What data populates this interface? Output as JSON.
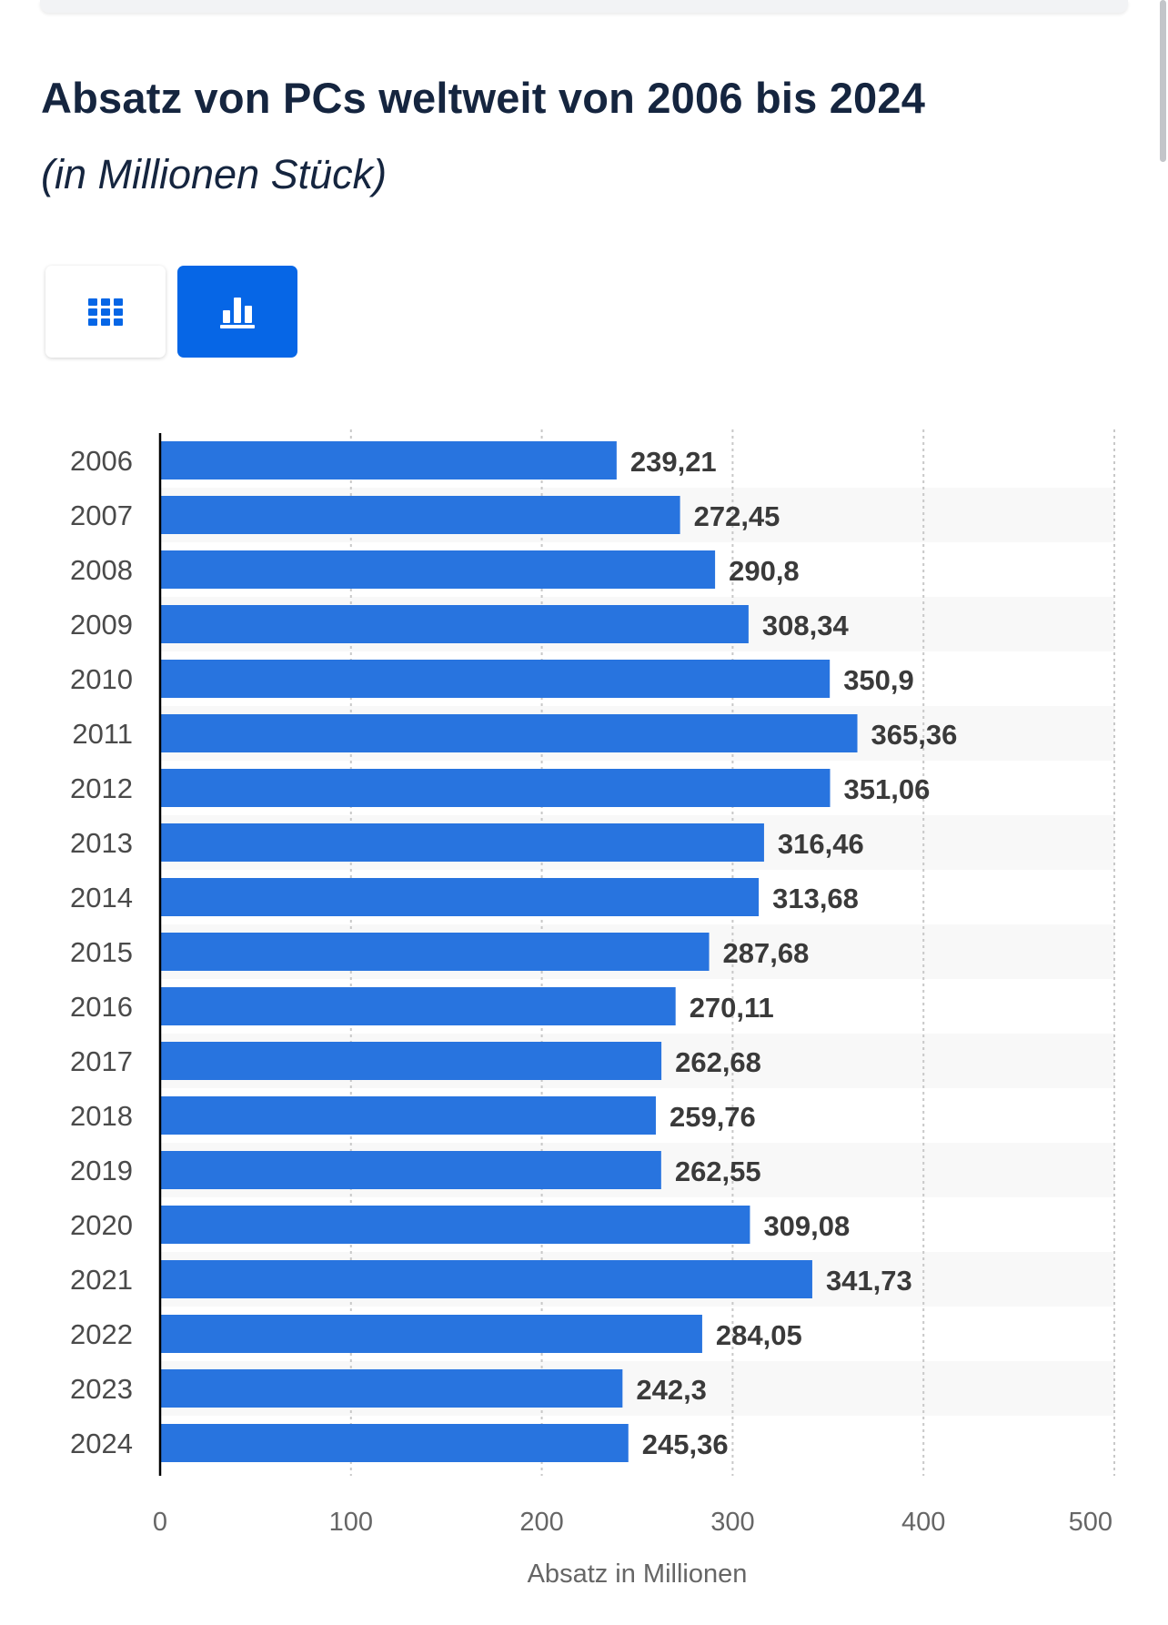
{
  "header": {
    "title": "Absatz von PCs weltweit von 2006 bis 2024",
    "subtitle": "(in Millionen Stück)"
  },
  "view_toggle": {
    "table_icon": "table-grid-icon",
    "chart_icon": "bar-chart-icon",
    "active": "chart"
  },
  "colors": {
    "bar": "#2874df",
    "accent": "#0666e6",
    "title": "#15253f"
  },
  "chart_data": {
    "type": "bar",
    "orientation": "horizontal",
    "title": "Absatz von PCs weltweit von 2006 bis 2024",
    "subtitle": "(in Millionen Stück)",
    "categories": [
      "2006",
      "2007",
      "2008",
      "2009",
      "2010",
      "2011",
      "2012",
      "2013",
      "2014",
      "2015",
      "2016",
      "2017",
      "2018",
      "2019",
      "2020",
      "2021",
      "2022",
      "2023",
      "2024"
    ],
    "values": [
      239.21,
      272.45,
      290.8,
      308.34,
      350.9,
      365.36,
      351.06,
      316.46,
      313.68,
      287.68,
      270.11,
      262.68,
      259.76,
      262.55,
      309.08,
      341.73,
      284.05,
      242.3,
      245.36
    ],
    "value_labels": [
      "239,21",
      "272,45",
      "290,8",
      "308,34",
      "350,9",
      "365,36",
      "351,06",
      "316,46",
      "313,68",
      "287,68",
      "270,11",
      "262,68",
      "259,76",
      "262,55",
      "309,08",
      "341,73",
      "284,05",
      "242,3",
      "245,36"
    ],
    "xlabel": "Absatz in Millionen",
    "ylabel": "",
    "xlim": [
      0,
      500
    ],
    "xticks": [
      0,
      100,
      200,
      300,
      400,
      500
    ],
    "grid": true
  }
}
